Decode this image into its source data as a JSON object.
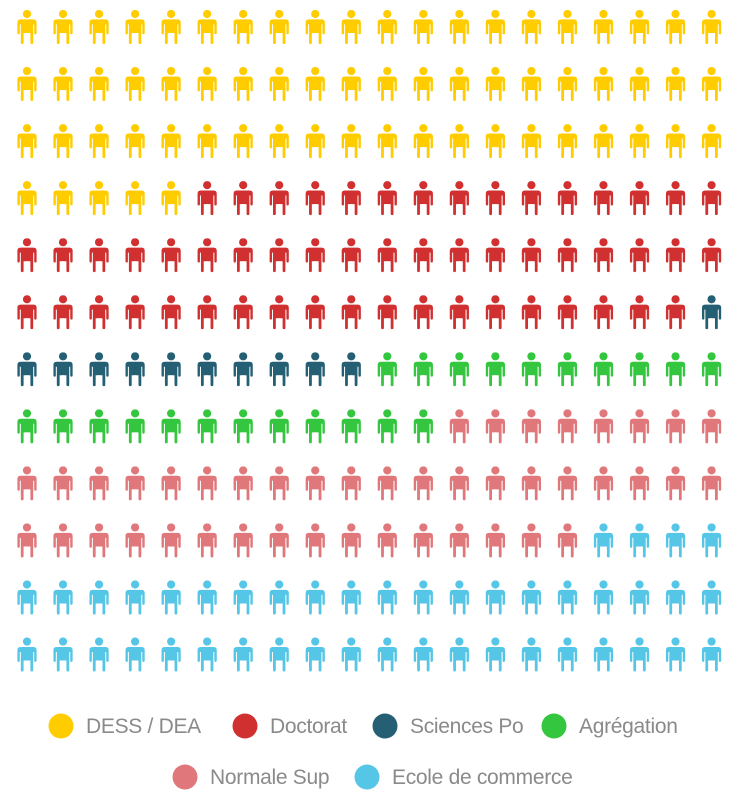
{
  "chart_data": {
    "type": "pictogram",
    "unit": "person-icon",
    "columns": 20,
    "rows": 12,
    "legend_position": "bottom",
    "categories": [
      {
        "name": "DESS / DEA",
        "count": 65,
        "color": "#FFCC00"
      },
      {
        "name": "Doctorat",
        "count": 54,
        "color": "#D03030"
      },
      {
        "name": "Sciences Po",
        "count": 11,
        "color": "#255F73"
      },
      {
        "name": "Agrégation",
        "count": 22,
        "color": "#33C63E"
      },
      {
        "name": "Normale Sup",
        "count": 44,
        "color": "#E0777B"
      },
      {
        "name": "Ecole de commerce",
        "count": 44,
        "color": "#56C6E7"
      }
    ]
  }
}
